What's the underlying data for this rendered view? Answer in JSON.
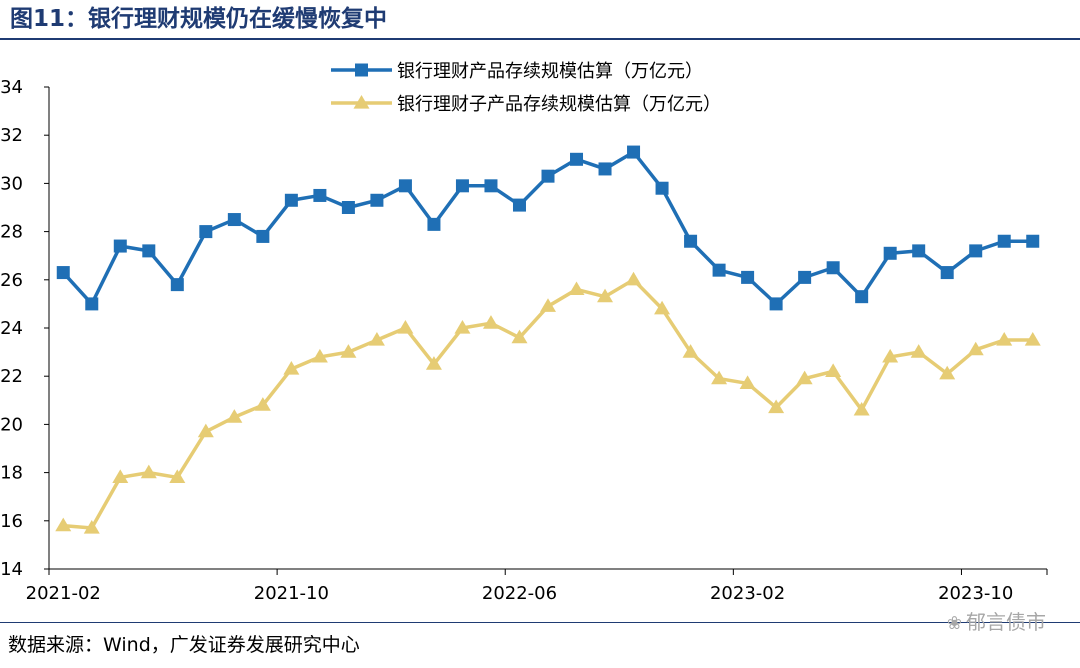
{
  "header": {
    "title": "图11：银行理财规模仍在缓慢恢复中"
  },
  "footer": {
    "source": "数据来源：Wind，广发证券发展研究中心"
  },
  "watermark": {
    "icon": "wechat-icon",
    "text": "郁言债市"
  },
  "colors": {
    "title": "#1f3b73",
    "series1": "#1f6fb5",
    "series2": "#e6cc74"
  },
  "chart_data": {
    "type": "line",
    "x": [
      "2021-02",
      "2021-03",
      "2021-04",
      "2021-05",
      "2021-06",
      "2021-07",
      "2021-08",
      "2021-09",
      "2021-10",
      "2021-11",
      "2021-12",
      "2022-01",
      "2022-02",
      "2022-03",
      "2022-04",
      "2022-05",
      "2022-06",
      "2022-07",
      "2022-08",
      "2022-09",
      "2022-10",
      "2022-11",
      "2022-12",
      "2023-01",
      "2023-02",
      "2023-03",
      "2023-04",
      "2023-05",
      "2023-06",
      "2023-07",
      "2023-08",
      "2023-09",
      "2023-10",
      "2023-11",
      "2023-12"
    ],
    "x_tick_labels": [
      "2021-02",
      "2021-10",
      "2022-06",
      "2023-02",
      "2023-10"
    ],
    "ylim": [
      14,
      34
    ],
    "y_ticks": [
      "14",
      "16",
      "18",
      "20",
      "22",
      "24",
      "26",
      "28",
      "30",
      "32",
      "34"
    ],
    "grid": false,
    "legend": "top-center",
    "series": [
      {
        "name": "银行理财产品存续规模估算（万亿元）",
        "marker": "square",
        "values": [
          26.3,
          25.0,
          27.4,
          27.2,
          25.8,
          28.0,
          28.5,
          27.8,
          29.3,
          29.5,
          29.0,
          29.3,
          29.9,
          28.3,
          29.9,
          29.9,
          29.1,
          30.3,
          31.0,
          30.6,
          31.3,
          29.8,
          27.6,
          26.4,
          26.1,
          25.0,
          26.1,
          26.5,
          25.3,
          27.1,
          27.2,
          26.3,
          27.2,
          27.6,
          27.6
        ]
      },
      {
        "name": "银行理财子产品存续规模估算（万亿元）",
        "marker": "triangle",
        "values": [
          15.8,
          15.7,
          17.8,
          18.0,
          17.8,
          19.7,
          20.3,
          20.8,
          22.3,
          22.8,
          23.0,
          23.5,
          24.0,
          22.5,
          24.0,
          24.2,
          23.6,
          24.9,
          25.6,
          25.3,
          26.0,
          24.8,
          23.0,
          21.9,
          21.7,
          20.7,
          21.9,
          22.2,
          20.6,
          22.8,
          23.0,
          22.1,
          23.1,
          23.5,
          23.5
        ]
      }
    ]
  }
}
